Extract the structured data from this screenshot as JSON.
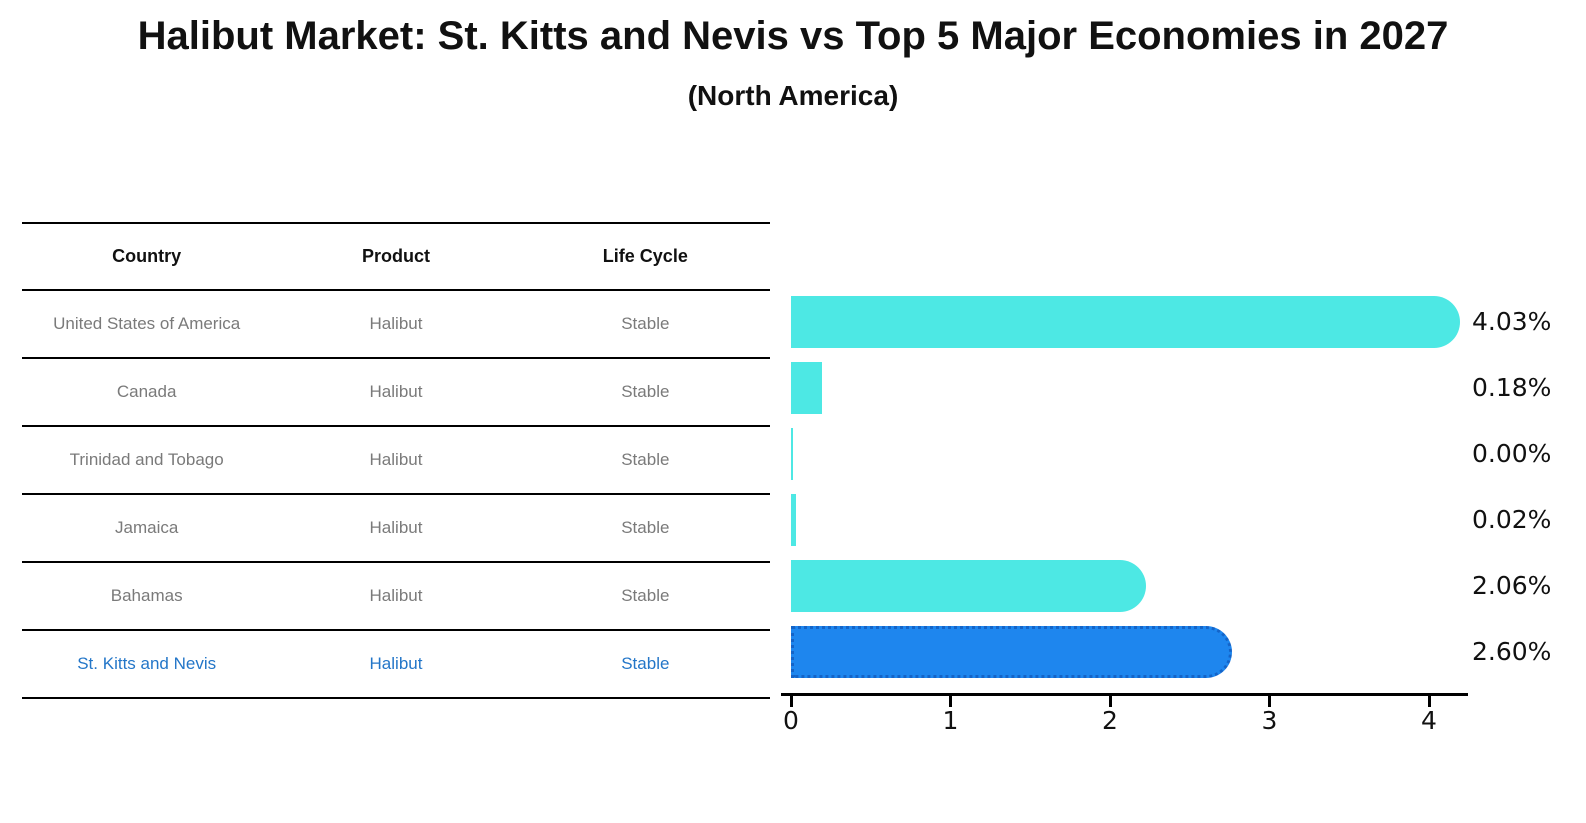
{
  "title": "Halibut Market: St. Kitts and Nevis vs Top 5 Major Economies in 2027",
  "subtitle": "(North America)",
  "table": {
    "headers": [
      "Country",
      "Product",
      "Life Cycle"
    ],
    "rows": [
      {
        "country": "United States of America",
        "product": "Halibut",
        "life_cycle": "Stable"
      },
      {
        "country": "Canada",
        "product": "Halibut",
        "life_cycle": "Stable"
      },
      {
        "country": "Trinidad and Tobago",
        "product": "Halibut",
        "life_cycle": "Stable"
      },
      {
        "country": "Jamaica",
        "product": "Halibut",
        "life_cycle": "Stable"
      },
      {
        "country": "Bahamas",
        "product": "Halibut",
        "life_cycle": "Stable"
      },
      {
        "country": "St. Kitts and Nevis",
        "product": "Halibut",
        "life_cycle": "Stable"
      }
    ]
  },
  "chart_data": {
    "type": "bar",
    "orientation": "horizontal",
    "title": "Halibut Market: St. Kitts and Nevis vs Top 5 Major Economies in 2027 (North America)",
    "categories": [
      "United States of America",
      "Canada",
      "Trinidad and Tobago",
      "Jamaica",
      "Bahamas",
      "St. Kitts and Nevis"
    ],
    "values": [
      4.03,
      0.18,
      0.0,
      0.02,
      2.06,
      2.6
    ],
    "value_labels": [
      "4.03%",
      "0.18%",
      "0.00%",
      "0.02%",
      "2.06%",
      "2.60%"
    ],
    "xlabel": "",
    "ylabel": "",
    "xlim": [
      0,
      4.23
    ],
    "x_ticks": [
      "0",
      "1",
      "2",
      "3",
      "4"
    ],
    "grid": false,
    "legend": false,
    "bar_color": "#4DE8E4",
    "highlight_color": "#1E86EE",
    "highlight_edge_color": "#1464C8",
    "highlight_index": 5,
    "highlight_text_color": "#2376c8"
  }
}
